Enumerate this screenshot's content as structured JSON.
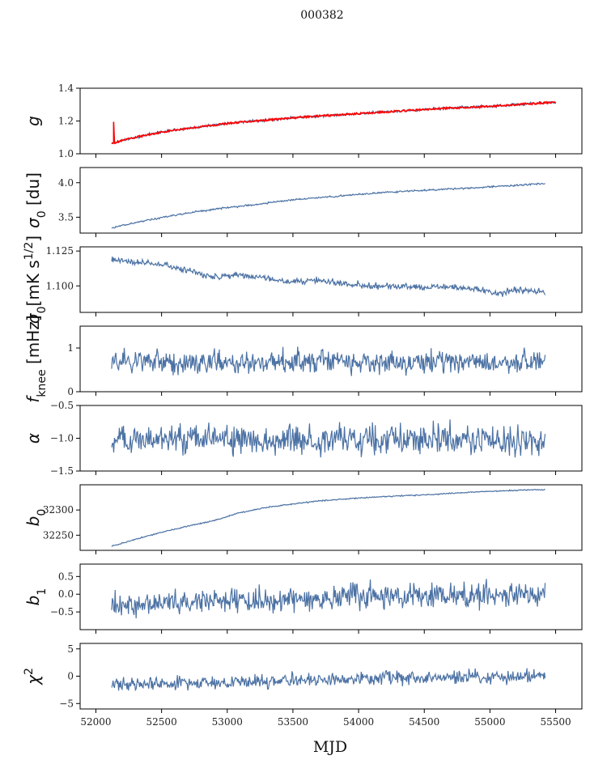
{
  "figure": {
    "title": "000382",
    "xlabel": "MJD",
    "line_color": "#4c72a4",
    "fit_color": "#ff0000"
  },
  "chart_data": [
    {
      "type": "line",
      "ylabel_text": "g",
      "ylabel_sub": "",
      "ylabel_sup": "",
      "ylabel_rest": "",
      "ylabel_italic": true,
      "xlim": [
        51880,
        55700
      ],
      "ylim": [
        1.0,
        1.4
      ],
      "yticks": [
        1.0,
        1.2,
        1.4
      ],
      "ytick_labels": [
        "1.0",
        "1.2",
        "1.4"
      ],
      "x": [
        52120,
        52140,
        52200,
        52300,
        52450,
        52600,
        52800,
        53000,
        53200,
        53400,
        53600,
        53800,
        54000,
        54200,
        54400,
        54600,
        54800,
        55000,
        55200,
        55300,
        55400,
        55500
      ],
      "y": [
        1.065,
        1.068,
        1.08,
        1.1,
        1.125,
        1.145,
        1.165,
        1.185,
        1.2,
        1.212,
        1.225,
        1.235,
        1.245,
        1.255,
        1.265,
        1.275,
        1.283,
        1.29,
        1.3,
        1.305,
        1.31,
        1.312
      ],
      "noise": 0.004,
      "series": [
        {
          "name": "",
          "role": "data"
        },
        {
          "name": "",
          "role": "fit",
          "spike": {
            "x": 52135,
            "ymax": 1.195
          }
        }
      ]
    },
    {
      "type": "line",
      "ylabel_text": "σ",
      "ylabel_sub": "0",
      "ylabel_sup": "",
      "ylabel_rest": " [du]",
      "ylabel_italic": true,
      "xlim": [
        51880,
        55700
      ],
      "ylim": [
        3.27,
        4.22
      ],
      "yticks": [
        3.5,
        4.0
      ],
      "ytick_labels": [
        "3.5",
        "4.0"
      ],
      "x": [
        52120,
        52200,
        52400,
        52600,
        52800,
        53000,
        53200,
        53400,
        53600,
        53800,
        54000,
        54200,
        54400,
        54600,
        54800,
        55000,
        55200,
        55420
      ],
      "y": [
        3.35,
        3.38,
        3.46,
        3.53,
        3.59,
        3.64,
        3.68,
        3.73,
        3.77,
        3.8,
        3.83,
        3.86,
        3.88,
        3.9,
        3.92,
        3.94,
        3.96,
        3.99
      ],
      "noise": 0.006,
      "series": [
        {
          "name": "",
          "role": "data"
        }
      ]
    },
    {
      "type": "line",
      "ylabel_text": "σ",
      "ylabel_sub": "0",
      "ylabel_sup": "",
      "ylabel_rest": "[mK s",
      "ylabel_rest_sup": "1/2",
      "ylabel_rest_end": "]",
      "ylabel_italic": true,
      "xlim": [
        51880,
        55700
      ],
      "ylim": [
        1.081,
        1.128
      ],
      "yticks": [
        1.1,
        1.125
      ],
      "ytick_labels": [
        "1.100",
        "1.125"
      ],
      "x": [
        52120,
        52300,
        52500,
        52700,
        52900,
        53100,
        53300,
        53500,
        53700,
        53900,
        54100,
        54300,
        54500,
        54700,
        54900,
        55050,
        55200,
        55420
      ],
      "y": [
        1.119,
        1.117,
        1.115,
        1.111,
        1.106,
        1.108,
        1.105,
        1.103,
        1.104,
        1.102,
        1.1,
        1.1,
        1.099,
        1.099,
        1.098,
        1.094,
        1.097,
        1.096
      ],
      "noise": 0.0011,
      "series": [
        {
          "name": "",
          "role": "data"
        }
      ]
    },
    {
      "type": "line",
      "ylabel_text": "f",
      "ylabel_sub": "knee",
      "ylabel_sup": "",
      "ylabel_rest": " [mHz]",
      "ylabel_italic": true,
      "xlim": [
        51880,
        55700
      ],
      "ylim": [
        0.0,
        1.5
      ],
      "yticks": [
        0,
        1
      ],
      "ytick_labels": [
        "0",
        "1"
      ],
      "x": [
        52120,
        55420
      ],
      "y": [
        0.68,
        0.68
      ],
      "noise": 0.13,
      "series": [
        {
          "name": "",
          "role": "data"
        }
      ]
    },
    {
      "type": "line",
      "ylabel_text": "α",
      "ylabel_sub": "",
      "ylabel_sup": "",
      "ylabel_rest": "",
      "ylabel_italic": true,
      "xlim": [
        51880,
        55700
      ],
      "ylim": [
        -1.5,
        -0.5
      ],
      "yticks": [
        -1.5,
        -1.0,
        -0.5
      ],
      "ytick_labels": [
        "−1.5",
        "−1.0",
        "−0.5"
      ],
      "x": [
        52120,
        55420
      ],
      "y": [
        -1.02,
        -1.02
      ],
      "noise": 0.11,
      "series": [
        {
          "name": "",
          "role": "data"
        }
      ]
    },
    {
      "type": "line",
      "ylabel_text": "b",
      "ylabel_sub": "0",
      "ylabel_sup": "",
      "ylabel_rest": "",
      "ylabel_italic": true,
      "xlim": [
        51880,
        55700
      ],
      "ylim": [
        32220,
        32350
      ],
      "yticks": [
        32250,
        32300
      ],
      "ytick_labels": [
        "32250",
        "32300"
      ],
      "x": [
        52120,
        52300,
        52500,
        52700,
        52900,
        53100,
        53300,
        53500,
        53700,
        53900,
        54100,
        54300,
        54500,
        54700,
        54900,
        55100,
        55300,
        55420
      ],
      "y": [
        32228,
        32242,
        32256,
        32268,
        32279,
        32295,
        32305,
        32312,
        32318,
        32322,
        32325,
        32328,
        32330,
        32333,
        32336,
        32338,
        32340,
        32340
      ],
      "noise": 0.6,
      "series": [
        {
          "name": "",
          "role": "data"
        }
      ]
    },
    {
      "type": "line",
      "ylabel_text": "b",
      "ylabel_sub": "1",
      "ylabel_sup": "",
      "ylabel_rest": "",
      "ylabel_italic": true,
      "xlim": [
        51880,
        55700
      ],
      "ylim": [
        -1.0,
        0.85
      ],
      "yticks": [
        -0.5,
        0.0,
        0.5
      ],
      "ytick_labels": [
        "−0.5",
        "0.0",
        "0.5"
      ],
      "x": [
        52120,
        53000,
        54000,
        55420
      ],
      "y": [
        -0.3,
        -0.2,
        -0.05,
        0.0
      ],
      "noise": 0.17,
      "series": [
        {
          "name": "",
          "role": "data"
        }
      ]
    },
    {
      "type": "line",
      "ylabel_text": "χ",
      "ylabel_sub": "",
      "ylabel_sup": "2",
      "ylabel_rest": "",
      "ylabel_italic": true,
      "xlim": [
        51880,
        55700
      ],
      "ylim": [
        -6.0,
        6.0
      ],
      "yticks": [
        -5,
        0,
        5
      ],
      "ytick_labels": [
        "−5",
        "0",
        "5"
      ],
      "xticks": [
        52000,
        52500,
        53000,
        53500,
        54000,
        54500,
        55000,
        55500
      ],
      "xtick_labels": [
        "52000",
        "52500",
        "53000",
        "53500",
        "54000",
        "54500",
        "55000",
        "55500"
      ],
      "x": [
        52120,
        53000,
        54000,
        55420
      ],
      "y": [
        -1.6,
        -1.1,
        -0.5,
        0.0
      ],
      "noise": 0.6,
      "series": [
        {
          "name": "",
          "role": "data"
        }
      ]
    }
  ]
}
